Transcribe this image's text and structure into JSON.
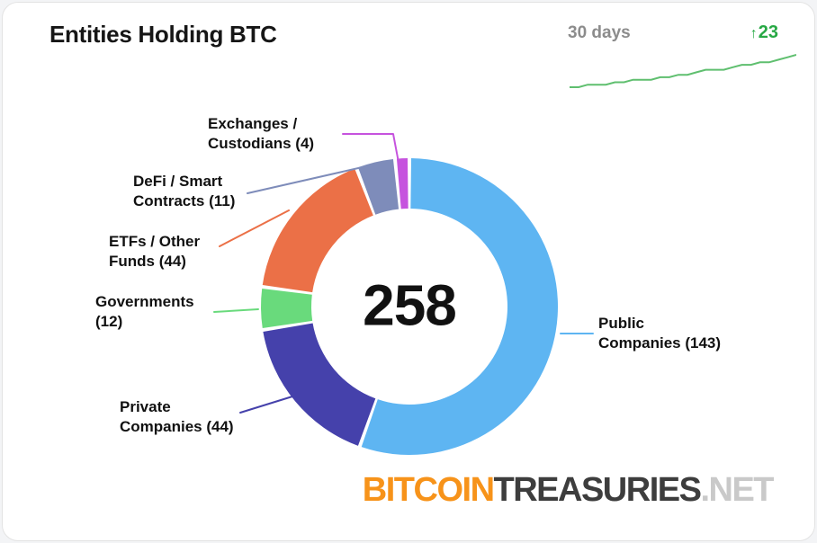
{
  "header": {
    "title": "Entities Holding BTC",
    "period_label": "30 days",
    "change_arrow": "↑",
    "change_value": "23",
    "colors": {
      "period": "#8c8c8c",
      "change": "#27a844",
      "sparkline": "#5fbf6f"
    },
    "sparkline_points": [
      2,
      2,
      3,
      3,
      3,
      4,
      4,
      5,
      5,
      5,
      6,
      6,
      7,
      7,
      8,
      9,
      9,
      9,
      10,
      11,
      11,
      12,
      12,
      13,
      14,
      15
    ]
  },
  "chart_data": {
    "type": "donut",
    "title": "Entities Holding BTC",
    "total": 258,
    "center_label": "258",
    "start_angle_deg": 0,
    "clockwise": true,
    "legend_position": "callouts",
    "segments": [
      {
        "name": "Public Companies",
        "value": 143,
        "color": "#5eb5f2",
        "display": "Public\nCompanies (143)"
      },
      {
        "name": "Private Companies",
        "value": 44,
        "color": "#4541ab",
        "display": "Private\nCompanies (44)"
      },
      {
        "name": "Governments",
        "value": 12,
        "color": "#69da7c",
        "display": "Governments\n(12)"
      },
      {
        "name": "ETFs / Other Funds",
        "value": 44,
        "color": "#eb7047",
        "display": "ETFs / Other\nFunds (44)"
      },
      {
        "name": "DeFi / Smart Contracts",
        "value": 11,
        "color": "#7e8cba",
        "display": "DeFi / Smart\nContracts (11)"
      },
      {
        "name": "Exchanges / Custodians",
        "value": 4,
        "color": "#c653de",
        "display": "Exchanges /\nCustodians (4)"
      }
    ]
  },
  "logo": {
    "part1": "BITCOIN",
    "part1_color": "#f7931a",
    "part2": "TREASURIES",
    "part2_color": "#3d3d3d",
    "part3": ".NET",
    "part3_color": "#c9c9c9"
  }
}
